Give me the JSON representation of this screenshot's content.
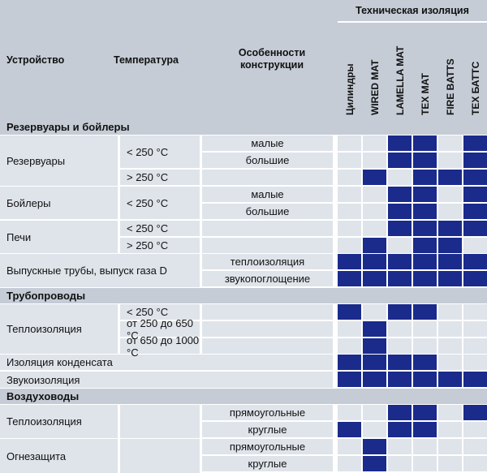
{
  "header": {
    "device": "Устройство",
    "temperature": "Температура",
    "construction": "Особенности конструкции",
    "tech_group": "Техническая изоляция",
    "products": [
      "Цилиндры",
      "WIRED MAT",
      "LAMELLA MAT",
      "TEX MAT",
      "FIRE BATTS",
      "TEX БАТТС"
    ]
  },
  "sections": [
    {
      "title": "Резервуары и бойлеры"
    },
    {
      "title": "Трубопроводы"
    },
    {
      "title": "Воздуховоды"
    }
  ],
  "devices": [
    "Резервуары",
    "Бойлеры",
    "Печи",
    "Выпускные трубы, выпуск газа D",
    "Теплоизоляция",
    "Изоляция конденсата",
    "Звукоизоляция",
    "Теплоизоляция",
    "Огнезащита"
  ],
  "temps": [
    "< 250 °C",
    "> 250 °C",
    "< 250 °C",
    "< 250 °C",
    "> 250 °C",
    "< 250 °C",
    "от 250 до 650 °C",
    "от 650 до 1000 °C"
  ],
  "features": [
    "малые",
    "большие",
    "малые",
    "большие",
    "теплоизоляция",
    "звукопоглощение",
    "прямоугольные",
    "круглые",
    "прямоугольные",
    "круглые"
  ],
  "rows": [
    {
      "label": "Резервуары < 250 °C малые",
      "marks": [
        0,
        0,
        1,
        1,
        0,
        1
      ]
    },
    {
      "label": "Резервуары < 250 °C большие",
      "marks": [
        0,
        0,
        1,
        1,
        0,
        1
      ]
    },
    {
      "label": "Резервуары > 250 °C",
      "marks": [
        0,
        1,
        0,
        1,
        1,
        1
      ]
    },
    {
      "label": "Бойлеры < 250 °C малые",
      "marks": [
        0,
        0,
        1,
        1,
        0,
        1
      ]
    },
    {
      "label": "Бойлеры < 250 °C большие",
      "marks": [
        0,
        0,
        1,
        1,
        0,
        1
      ]
    },
    {
      "label": "Печи < 250 °C",
      "marks": [
        0,
        0,
        1,
        1,
        1,
        1
      ]
    },
    {
      "label": "Печи > 250 °C",
      "marks": [
        0,
        1,
        0,
        1,
        1,
        0
      ]
    },
    {
      "label": "Выпускные трубы теплоизоляция",
      "marks": [
        1,
        1,
        1,
        1,
        1,
        1
      ]
    },
    {
      "label": "Выпускные трубы звукопоглощение",
      "marks": [
        1,
        1,
        1,
        1,
        1,
        1
      ]
    },
    {
      "label": "Трубопроводы Теплоизоляция < 250 °C",
      "marks": [
        1,
        0,
        1,
        1,
        0,
        0
      ]
    },
    {
      "label": "Трубопроводы Теплоизоляция от 250 до 650 °C",
      "marks": [
        0,
        1,
        0,
        0,
        0,
        0
      ]
    },
    {
      "label": "Трубопроводы Теплоизоляция от 650 до 1000 °C",
      "marks": [
        0,
        1,
        0,
        0,
        0,
        0
      ]
    },
    {
      "label": "Изоляция конденсата",
      "marks": [
        1,
        1,
        1,
        1,
        0,
        0
      ]
    },
    {
      "label": "Звукоизоляция",
      "marks": [
        1,
        1,
        1,
        1,
        1,
        1
      ]
    },
    {
      "label": "Воздуховоды Теплоизоляция прямоугольные",
      "marks": [
        0,
        0,
        1,
        1,
        0,
        1
      ]
    },
    {
      "label": "Воздуховоды Теплоизоляция круглые",
      "marks": [
        1,
        0,
        1,
        1,
        0,
        0
      ]
    },
    {
      "label": "Огнезащита прямоугольные",
      "marks": [
        0,
        1,
        0,
        0,
        0,
        0
      ]
    },
    {
      "label": "Огнезащита круглые",
      "marks": [
        0,
        1,
        0,
        0,
        0,
        0
      ]
    }
  ],
  "colors": {
    "mark": "#1a2b8c",
    "header": "#c5ccd6",
    "row": "#dfe4ea"
  }
}
